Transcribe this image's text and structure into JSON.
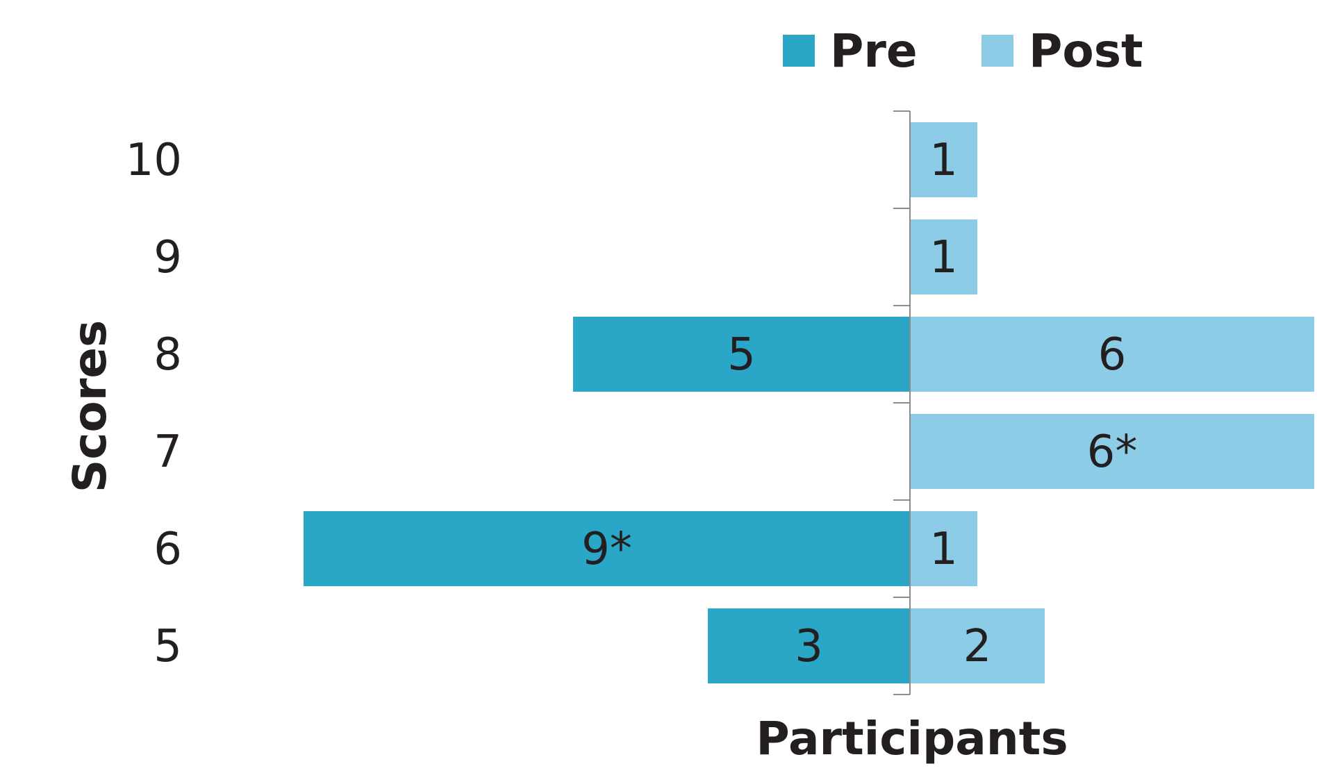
{
  "chart_data": {
    "type": "bar",
    "orientation": "horizontal-diverging",
    "categories": [
      "10",
      "9",
      "8",
      "7",
      "6",
      "5"
    ],
    "series": [
      {
        "name": "Pre",
        "color": "#2aa6c6",
        "direction": "left",
        "values": [
          0,
          0,
          5,
          0,
          9,
          3
        ],
        "labels": [
          "",
          "",
          "5",
          "",
          "9*",
          "3"
        ]
      },
      {
        "name": "Post",
        "color": "#8ccce6",
        "direction": "right",
        "values": [
          1,
          1,
          6,
          6,
          1,
          2
        ],
        "labels": [
          "1",
          "1",
          "6",
          "6*",
          "1",
          "2"
        ]
      }
    ],
    "xlabel": "Participants",
    "ylabel": "Scores",
    "legend": "top",
    "grid": false
  }
}
